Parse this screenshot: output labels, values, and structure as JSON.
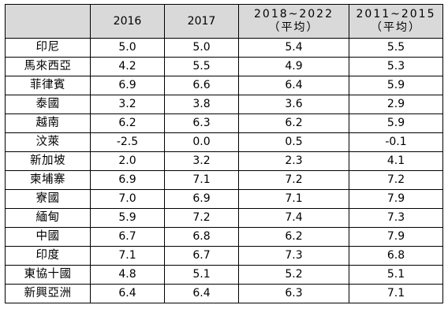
{
  "table": {
    "columns": [
      {
        "line1": "",
        "line2": ""
      },
      {
        "line1": "2016",
        "line2": ""
      },
      {
        "line1": "2017",
        "line2": ""
      },
      {
        "line1": "2018~2022",
        "line2": "（平均）"
      },
      {
        "line1": "2011~2015",
        "line2": "（平均）"
      }
    ],
    "rows": [
      {
        "name": "印尼",
        "v2016": "5.0",
        "v2017": "5.0",
        "v2018_2022": "5.4",
        "v2011_2015": "5.5"
      },
      {
        "name": "馬來西亞",
        "v2016": "4.2",
        "v2017": "5.5",
        "v2018_2022": "4.9",
        "v2011_2015": "5.3"
      },
      {
        "name": "菲律賓",
        "v2016": "6.9",
        "v2017": "6.6",
        "v2018_2022": "6.4",
        "v2011_2015": "5.9"
      },
      {
        "name": "泰國",
        "v2016": "3.2",
        "v2017": "3.8",
        "v2018_2022": "3.6",
        "v2011_2015": "2.9"
      },
      {
        "name": "越南",
        "v2016": "6.2",
        "v2017": "6.3",
        "v2018_2022": "6.2",
        "v2011_2015": "5.9"
      },
      {
        "name": "汶萊",
        "v2016": "-2.5",
        "v2017": "0.0",
        "v2018_2022": "0.5",
        "v2011_2015": "-0.1"
      },
      {
        "name": "新加坡",
        "v2016": "2.0",
        "v2017": "3.2",
        "v2018_2022": "2.3",
        "v2011_2015": "4.1"
      },
      {
        "name": "柬埔寨",
        "v2016": "6.9",
        "v2017": "7.1",
        "v2018_2022": "7.2",
        "v2011_2015": "7.2"
      },
      {
        "name": "寮國",
        "v2016": "7.0",
        "v2017": "6.9",
        "v2018_2022": "7.1",
        "v2011_2015": "7.9"
      },
      {
        "name": "緬甸",
        "v2016": "5.9",
        "v2017": "7.2",
        "v2018_2022": "7.4",
        "v2011_2015": "7.3"
      },
      {
        "name": "中國",
        "v2016": "6.7",
        "v2017": "6.8",
        "v2018_2022": "6.2",
        "v2011_2015": "7.9"
      },
      {
        "name": "印度",
        "v2016": "7.1",
        "v2017": "6.7",
        "v2018_2022": "7.3",
        "v2011_2015": "6.8"
      },
      {
        "name": "東協十國",
        "v2016": "4.8",
        "v2017": "5.1",
        "v2018_2022": "5.2",
        "v2011_2015": "5.1"
      },
      {
        "name": "新興亞洲",
        "v2016": "6.4",
        "v2017": "6.4",
        "v2018_2022": "6.3",
        "v2011_2015": "7.1"
      }
    ]
  },
  "colors": {
    "header_background": "#d9d9d9",
    "border": "#000000",
    "text": "#000000"
  }
}
